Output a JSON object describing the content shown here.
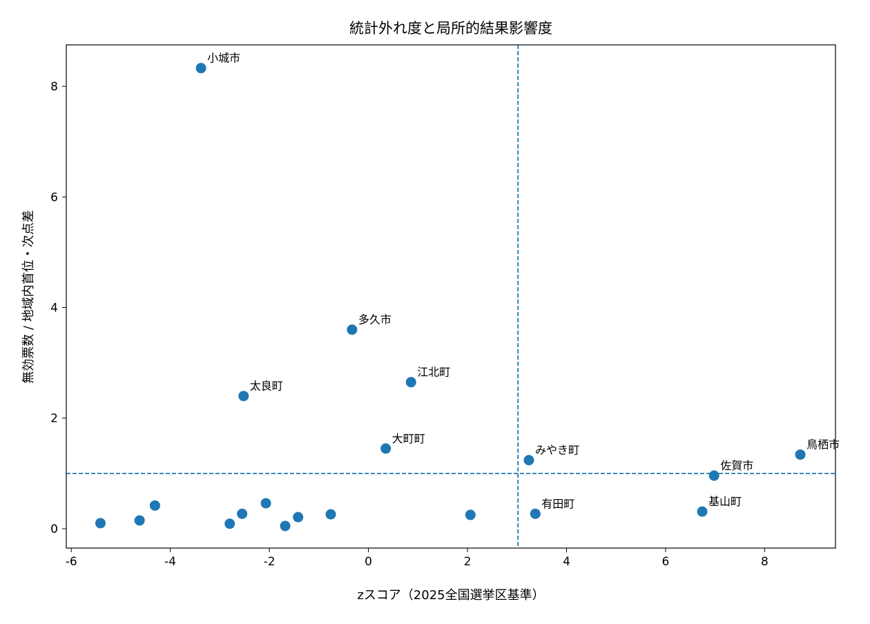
{
  "chart_data": {
    "type": "scatter",
    "title": "統計外れ度と局所的結果影響度",
    "xlabel": "zスコア（2025全国選挙区基準）",
    "ylabel": "無効票数 / 地域内首位・次点差",
    "xlim": [
      -6.1,
      9.43
    ],
    "ylim": [
      -0.35,
      8.75
    ],
    "xticks": [
      -6,
      -4,
      -2,
      0,
      2,
      4,
      6,
      8
    ],
    "yticks": [
      0,
      2,
      4,
      6,
      8
    ],
    "grid": false,
    "color": "#1f77b4",
    "reference_lines": {
      "x": 3.02,
      "y": 1.0,
      "style": "dashed"
    },
    "points": [
      {
        "x": -3.38,
        "y": 8.33,
        "label": "小城市"
      },
      {
        "x": -0.33,
        "y": 3.6,
        "label": "多久市"
      },
      {
        "x": -2.52,
        "y": 2.4,
        "label": "太良町"
      },
      {
        "x": 0.86,
        "y": 2.65,
        "label": "江北町"
      },
      {
        "x": 0.35,
        "y": 1.45,
        "label": "大町町"
      },
      {
        "x": 3.24,
        "y": 1.24,
        "label": "みやき町"
      },
      {
        "x": 3.37,
        "y": 0.27,
        "label": "有田町"
      },
      {
        "x": 8.72,
        "y": 1.34,
        "label": "鳥栖市"
      },
      {
        "x": 6.98,
        "y": 0.96,
        "label": "佐賀市"
      },
      {
        "x": 6.74,
        "y": 0.31,
        "label": "基山町"
      },
      {
        "x": -5.41,
        "y": 0.1,
        "label": ""
      },
      {
        "x": -4.62,
        "y": 0.15,
        "label": ""
      },
      {
        "x": -4.31,
        "y": 0.42,
        "label": ""
      },
      {
        "x": -2.8,
        "y": 0.09,
        "label": ""
      },
      {
        "x": -2.55,
        "y": 0.27,
        "label": ""
      },
      {
        "x": -2.07,
        "y": 0.46,
        "label": ""
      },
      {
        "x": -1.68,
        "y": 0.05,
        "label": ""
      },
      {
        "x": -1.42,
        "y": 0.21,
        "label": ""
      },
      {
        "x": -0.76,
        "y": 0.26,
        "label": ""
      },
      {
        "x": 2.06,
        "y": 0.25,
        "label": ""
      }
    ]
  }
}
